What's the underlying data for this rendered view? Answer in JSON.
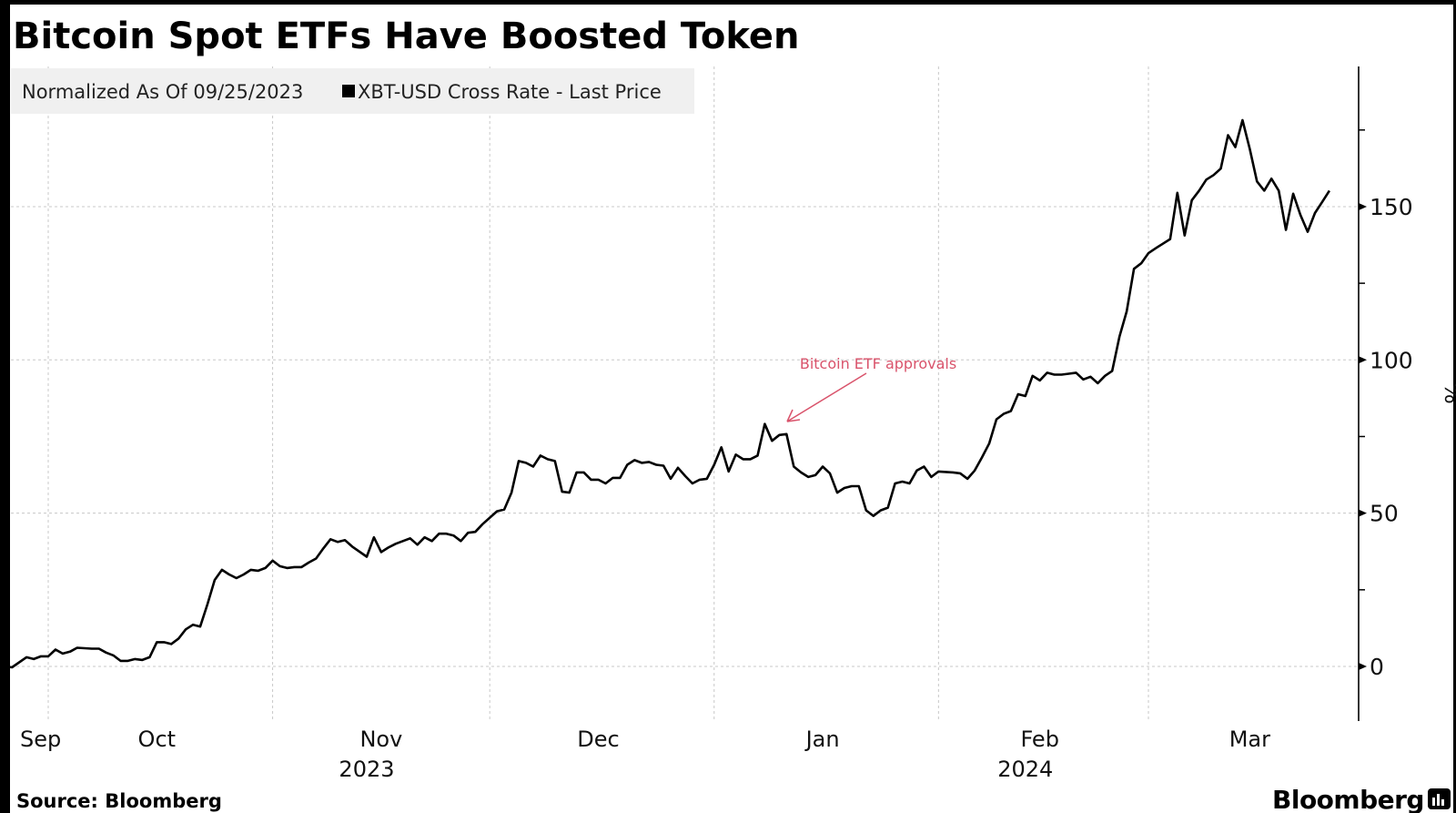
{
  "title": "Bitcoin Spot ETFs Have Boosted Token",
  "legend": {
    "note": "Normalized As Of 09/25/2023",
    "series_label": "XBT-USD Cross Rate - Last Price"
  },
  "source": "Source: Bloomberg",
  "brand": "Bloomberg",
  "colors": {
    "line": "#000000",
    "annotation": "#d9536b",
    "legend_bg": "#f0f0f0",
    "grid": "#c8c8c8"
  },
  "chart_data": {
    "type": "line",
    "title": "Bitcoin Spot ETFs Have Boosted Token",
    "ylabel": "%",
    "ylim": [
      -18,
      195
    ],
    "xlim": [
      "2023-09-25",
      "2024-03-31"
    ],
    "y_ticks": [
      0,
      50,
      100,
      150
    ],
    "y_tick_labels": [
      "0",
      "50",
      "100",
      "150"
    ],
    "y_minor_ticks": [
      25,
      75,
      125,
      175
    ],
    "x_ticks": [
      {
        "label": "Sep",
        "date": "2023-09-25"
      },
      {
        "label": "Oct",
        "date": "2023-10-16"
      },
      {
        "label": "Nov",
        "date": "2023-11-16"
      },
      {
        "label": "Dec",
        "date": "2023-12-16"
      },
      {
        "label": "Jan",
        "date": "2024-01-16"
      },
      {
        "label": "Feb",
        "date": "2024-02-15"
      },
      {
        "label": "Mar",
        "date": "2024-03-15"
      }
    ],
    "x_year_labels": [
      {
        "label": "2023",
        "date": "2023-11-14"
      },
      {
        "label": "2024",
        "date": "2024-02-13"
      }
    ],
    "x_gridlines": [
      "2023-10-01",
      "2023-11-01",
      "2023-12-01",
      "2024-01-01",
      "2024-02-01",
      "2024-03-01"
    ],
    "grid": true,
    "legend_placement": "top-left",
    "annotation": {
      "text": "Bitcoin ETF approvals",
      "date": "2024-01-09",
      "value": 79
    },
    "series": [
      {
        "name": "XBT-USD Cross Rate - Last Price",
        "points": [
          [
            "2023-09-25",
            0.0
          ],
          [
            "2023-09-26",
            -0.3
          ],
          [
            "2023-09-28",
            3.0
          ],
          [
            "2023-09-29",
            2.4
          ],
          [
            "2023-09-30",
            3.3
          ],
          [
            "2023-10-01",
            3.3
          ],
          [
            "2023-10-02",
            5.5
          ],
          [
            "2023-10-03",
            4.2
          ],
          [
            "2023-10-04",
            4.8
          ],
          [
            "2023-10-05",
            6.1
          ],
          [
            "2023-10-07",
            5.8
          ],
          [
            "2023-10-08",
            5.8
          ],
          [
            "2023-10-09",
            4.5
          ],
          [
            "2023-10-10",
            3.6
          ],
          [
            "2023-10-11",
            1.8
          ],
          [
            "2023-10-12",
            1.8
          ],
          [
            "2023-10-13",
            2.4
          ],
          [
            "2023-10-14",
            2.1
          ],
          [
            "2023-10-15",
            3.0
          ],
          [
            "2023-10-16",
            7.9
          ],
          [
            "2023-10-17",
            7.9
          ],
          [
            "2023-10-18",
            7.3
          ],
          [
            "2023-10-19",
            9.1
          ],
          [
            "2023-10-20",
            12.1
          ],
          [
            "2023-10-21",
            13.6
          ],
          [
            "2023-10-22",
            13.0
          ],
          [
            "2023-10-23",
            20.3
          ],
          [
            "2023-10-24",
            28.2
          ],
          [
            "2023-10-25",
            31.5
          ],
          [
            "2023-10-26",
            30.0
          ],
          [
            "2023-10-27",
            28.8
          ],
          [
            "2023-10-28",
            30.0
          ],
          [
            "2023-10-29",
            31.5
          ],
          [
            "2023-10-30",
            31.2
          ],
          [
            "2023-10-31",
            32.1
          ],
          [
            "2023-11-01",
            34.5
          ],
          [
            "2023-11-02",
            32.7
          ],
          [
            "2023-11-03",
            32.1
          ],
          [
            "2023-11-04",
            32.4
          ],
          [
            "2023-11-05",
            32.4
          ],
          [
            "2023-11-06",
            33.9
          ],
          [
            "2023-11-07",
            35.2
          ],
          [
            "2023-11-08",
            38.5
          ],
          [
            "2023-11-09",
            41.5
          ],
          [
            "2023-11-10",
            40.6
          ],
          [
            "2023-11-11",
            41.2
          ],
          [
            "2023-11-12",
            39.1
          ],
          [
            "2023-11-14",
            35.8
          ],
          [
            "2023-11-15",
            42.1
          ],
          [
            "2023-11-16",
            37.3
          ],
          [
            "2023-11-17",
            38.8
          ],
          [
            "2023-11-18",
            40.0
          ],
          [
            "2023-11-20",
            41.8
          ],
          [
            "2023-11-21",
            39.7
          ],
          [
            "2023-11-22",
            42.1
          ],
          [
            "2023-11-23",
            40.9
          ],
          [
            "2023-11-24",
            43.3
          ],
          [
            "2023-11-25",
            43.3
          ],
          [
            "2023-11-26",
            42.7
          ],
          [
            "2023-11-27",
            40.9
          ],
          [
            "2023-11-28",
            43.6
          ],
          [
            "2023-11-29",
            43.9
          ],
          [
            "2023-11-30",
            46.4
          ],
          [
            "2023-12-02",
            50.6
          ],
          [
            "2023-12-03",
            51.2
          ],
          [
            "2023-12-04",
            56.7
          ],
          [
            "2023-12-05",
            67.0
          ],
          [
            "2023-12-06",
            66.4
          ],
          [
            "2023-12-07",
            65.2
          ],
          [
            "2023-12-08",
            68.8
          ],
          [
            "2023-12-09",
            67.6
          ],
          [
            "2023-12-10",
            67.0
          ],
          [
            "2023-12-11",
            57.0
          ],
          [
            "2023-12-12",
            56.7
          ],
          [
            "2023-12-13",
            63.3
          ],
          [
            "2023-12-14",
            63.3
          ],
          [
            "2023-12-15",
            60.9
          ],
          [
            "2023-12-16",
            60.9
          ],
          [
            "2023-12-17",
            59.7
          ],
          [
            "2023-12-18",
            61.5
          ],
          [
            "2023-12-19",
            61.5
          ],
          [
            "2023-12-20",
            65.8
          ],
          [
            "2023-12-21",
            67.3
          ],
          [
            "2023-12-22",
            66.4
          ],
          [
            "2023-12-23",
            66.7
          ],
          [
            "2023-12-24",
            65.8
          ],
          [
            "2023-12-25",
            65.5
          ],
          [
            "2023-12-26",
            61.2
          ],
          [
            "2023-12-27",
            64.8
          ],
          [
            "2023-12-28",
            62.1
          ],
          [
            "2023-12-29",
            59.7
          ],
          [
            "2023-12-30",
            60.9
          ],
          [
            "2023-12-31",
            61.2
          ],
          [
            "2024-01-01",
            65.8
          ],
          [
            "2024-01-02",
            71.5
          ],
          [
            "2024-01-03",
            63.6
          ],
          [
            "2024-01-04",
            69.1
          ],
          [
            "2024-01-05",
            67.6
          ],
          [
            "2024-01-06",
            67.6
          ],
          [
            "2024-01-07",
            68.8
          ],
          [
            "2024-01-08",
            79.1
          ],
          [
            "2024-01-09",
            73.6
          ],
          [
            "2024-01-10",
            75.5
          ],
          [
            "2024-01-11",
            75.8
          ],
          [
            "2024-01-12",
            65.2
          ],
          [
            "2024-01-13",
            63.3
          ],
          [
            "2024-01-14",
            61.8
          ],
          [
            "2024-01-15",
            62.4
          ],
          [
            "2024-01-16",
            65.2
          ],
          [
            "2024-01-17",
            63.0
          ],
          [
            "2024-01-18",
            56.7
          ],
          [
            "2024-01-19",
            58.2
          ],
          [
            "2024-01-20",
            58.8
          ],
          [
            "2024-01-21",
            58.8
          ],
          [
            "2024-01-22",
            50.9
          ],
          [
            "2024-01-23",
            49.1
          ],
          [
            "2024-01-24",
            50.9
          ],
          [
            "2024-01-25",
            51.8
          ],
          [
            "2024-01-26",
            59.7
          ],
          [
            "2024-01-27",
            60.3
          ],
          [
            "2024-01-28",
            59.7
          ],
          [
            "2024-01-29",
            63.9
          ],
          [
            "2024-01-30",
            65.2
          ],
          [
            "2024-01-31",
            61.8
          ],
          [
            "2024-02-01",
            63.6
          ],
          [
            "2024-02-03",
            63.3
          ],
          [
            "2024-02-04",
            63.0
          ],
          [
            "2024-02-05",
            61.2
          ],
          [
            "2024-02-06",
            63.9
          ],
          [
            "2024-02-07",
            68.2
          ],
          [
            "2024-02-08",
            72.7
          ],
          [
            "2024-02-09",
            80.6
          ],
          [
            "2024-02-10",
            82.4
          ],
          [
            "2024-02-11",
            83.3
          ],
          [
            "2024-02-12",
            88.8
          ],
          [
            "2024-02-13",
            88.2
          ],
          [
            "2024-02-14",
            94.8
          ],
          [
            "2024-02-15",
            93.3
          ],
          [
            "2024-02-16",
            95.8
          ],
          [
            "2024-02-17",
            95.2
          ],
          [
            "2024-02-18",
            95.2
          ],
          [
            "2024-02-19",
            95.5
          ],
          [
            "2024-02-20",
            95.8
          ],
          [
            "2024-02-21",
            93.6
          ],
          [
            "2024-02-22",
            94.5
          ],
          [
            "2024-02-23",
            92.4
          ],
          [
            "2024-02-24",
            94.8
          ],
          [
            "2024-02-25",
            96.4
          ],
          [
            "2024-02-26",
            107.6
          ],
          [
            "2024-02-27",
            115.8
          ],
          [
            "2024-02-28",
            129.7
          ],
          [
            "2024-02-29",
            131.5
          ],
          [
            "2024-03-01",
            134.8
          ],
          [
            "2024-03-02",
            136.4
          ],
          [
            "2024-03-03",
            137.9
          ],
          [
            "2024-03-04",
            139.4
          ],
          [
            "2024-03-05",
            154.5
          ],
          [
            "2024-03-06",
            140.6
          ],
          [
            "2024-03-07",
            152.1
          ],
          [
            "2024-03-08",
            155.2
          ],
          [
            "2024-03-09",
            158.8
          ],
          [
            "2024-03-10",
            160.3
          ],
          [
            "2024-03-11",
            162.4
          ],
          [
            "2024-03-12",
            173.3
          ],
          [
            "2024-03-13",
            169.4
          ],
          [
            "2024-03-14",
            178.2
          ],
          [
            "2024-03-15",
            168.8
          ],
          [
            "2024-03-16",
            158.2
          ],
          [
            "2024-03-17",
            155.2
          ],
          [
            "2024-03-18",
            159.1
          ],
          [
            "2024-03-19",
            155.2
          ],
          [
            "2024-03-20",
            142.4
          ],
          [
            "2024-03-21",
            154.2
          ],
          [
            "2024-03-22",
            147.3
          ],
          [
            "2024-03-23",
            141.8
          ],
          [
            "2024-03-24",
            147.9
          ],
          [
            "2024-03-25",
            151.5
          ],
          [
            "2024-03-26",
            155.2
          ]
        ]
      }
    ]
  }
}
